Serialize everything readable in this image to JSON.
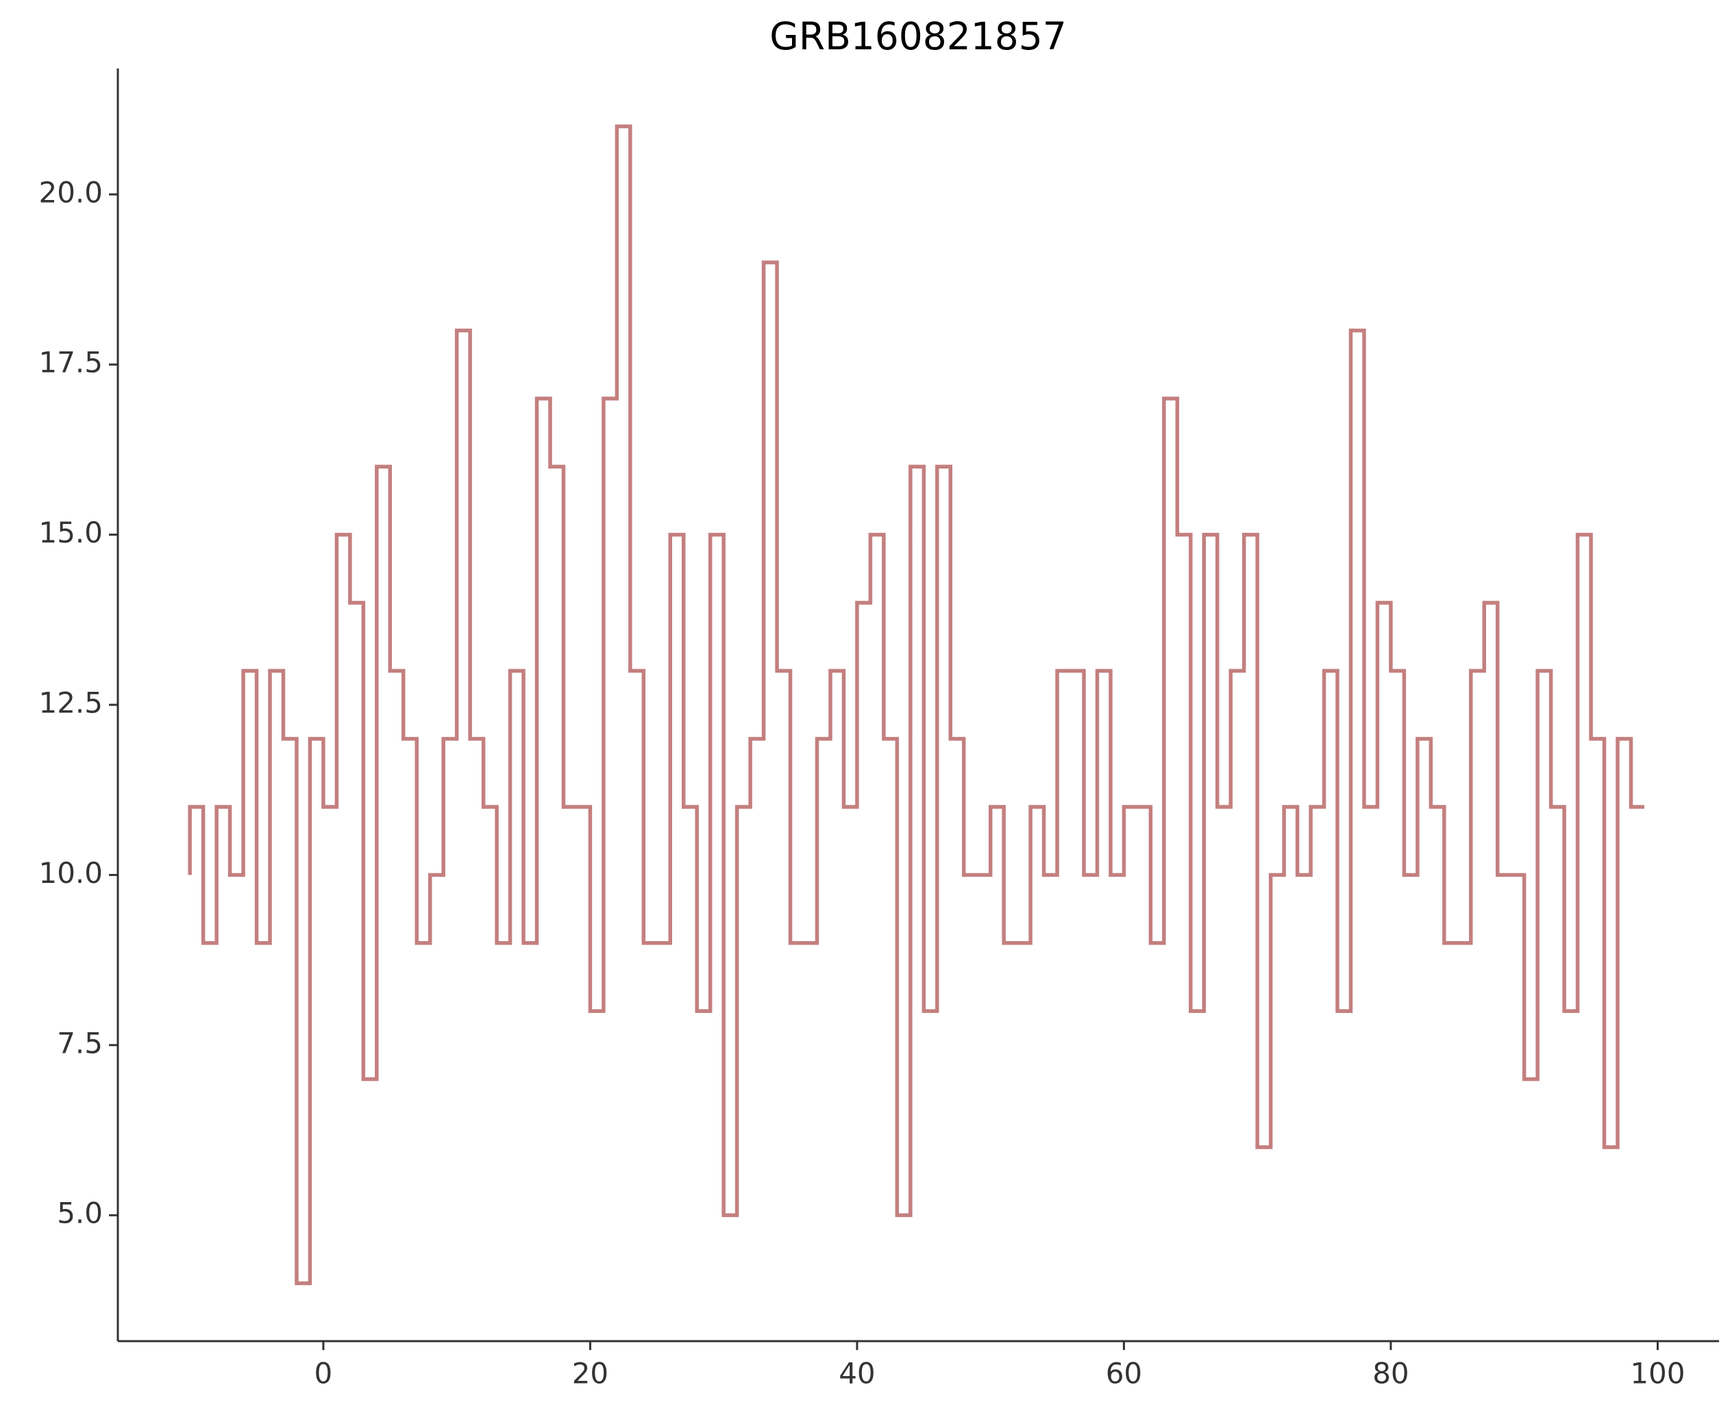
{
  "chart_data": {
    "type": "step",
    "title": "GRB160821857",
    "x": [
      -10,
      -9,
      -8,
      -7,
      -6,
      -5,
      -4,
      -3,
      -2,
      -1,
      0,
      1,
      2,
      3,
      4,
      5,
      6,
      7,
      8,
      9,
      10,
      11,
      12,
      13,
      14,
      15,
      16,
      17,
      18,
      19,
      20,
      21,
      22,
      23,
      24,
      25,
      26,
      27,
      28,
      29,
      30,
      31,
      32,
      33,
      34,
      35,
      36,
      37,
      38,
      39,
      40,
      41,
      42,
      43,
      44,
      45,
      46,
      47,
      48,
      49,
      50,
      51,
      52,
      53,
      54,
      55,
      56,
      57,
      58,
      59,
      60,
      61,
      62,
      63,
      64,
      65,
      66,
      67,
      68,
      69,
      70,
      71,
      72,
      73,
      74,
      75,
      76,
      77,
      78,
      79,
      80,
      81,
      82,
      83,
      84,
      85,
      86,
      87,
      88,
      89,
      90,
      91,
      92,
      93,
      94,
      95,
      96,
      97,
      98,
      99
    ],
    "series": [
      {
        "color": "#c47f7f",
        "values": [
          10,
          11,
          9,
          11,
          10,
          13,
          9,
          13,
          12,
          4,
          12,
          11,
          15,
          14,
          7,
          16,
          13,
          12,
          9,
          10,
          12,
          18,
          12,
          11,
          9,
          13,
          9,
          17,
          16,
          11,
          11,
          8,
          17,
          21,
          13,
          9,
          9,
          15,
          11,
          8,
          15,
          5,
          11,
          12,
          19,
          13,
          9,
          9,
          12,
          13,
          11,
          14,
          15,
          12,
          5,
          16,
          8,
          16,
          12,
          10,
          10,
          11,
          9,
          9,
          11,
          10,
          13,
          13,
          10,
          13,
          10,
          11,
          11,
          9,
          17,
          15,
          8,
          15,
          11,
          13,
          15,
          6,
          10,
          11,
          10,
          11,
          13,
          8,
          18,
          11,
          14,
          13,
          10,
          12,
          11,
          9,
          9,
          13,
          14,
          10,
          10,
          7,
          13,
          11,
          8,
          15,
          12,
          6,
          12,
          11
        ]
      }
    ],
    "xlim": [
      -15.4,
      104.6
    ],
    "xticks": [
      0,
      20,
      40,
      60,
      80,
      100
    ],
    "ylim": [
      3.15,
      21.85
    ],
    "yticks": [
      {
        "value": 5,
        "label": "5.0"
      },
      {
        "value": 7.5,
        "label": "7.5"
      },
      {
        "value": 10,
        "label": "10.0"
      },
      {
        "value": 12.5,
        "label": "12.5"
      },
      {
        "value": 15,
        "label": "15.0"
      },
      {
        "value": 17.5,
        "label": "17.5"
      },
      {
        "value": 20,
        "label": "20.0"
      }
    ]
  }
}
